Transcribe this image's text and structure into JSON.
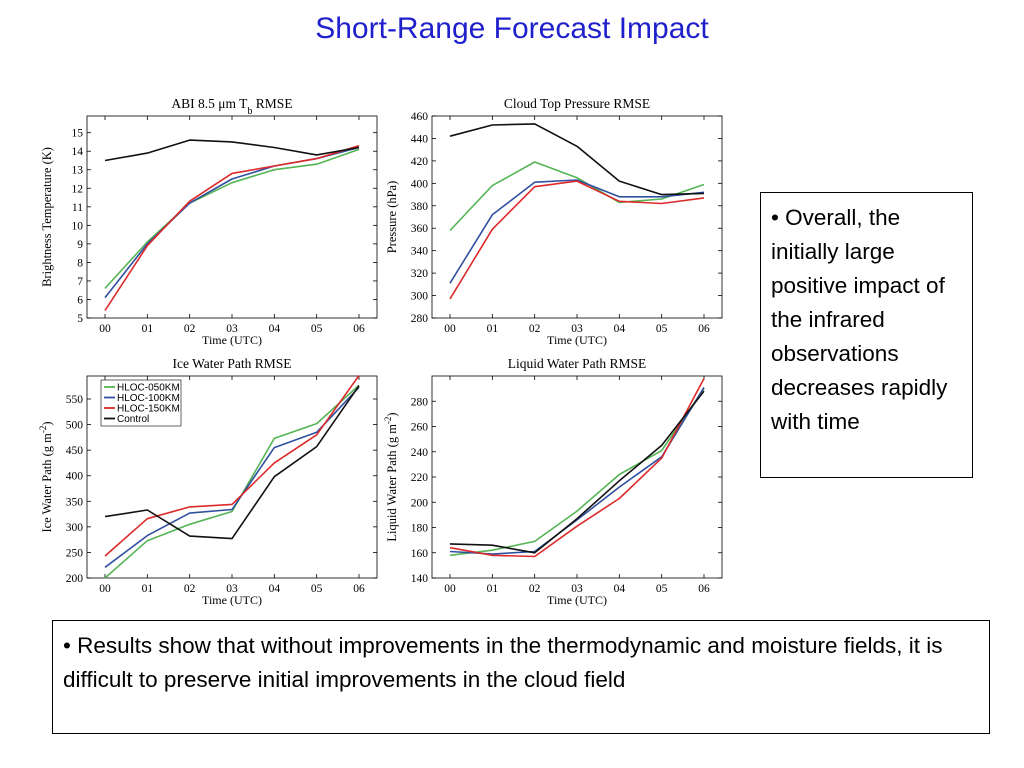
{
  "slide": {
    "title": "Short-Range Forecast Impact",
    "note_right": "• Overall, the initially large positive impact of the infrared observations decreases rapidly with time",
    "note_bottom": "• Results show that without improvements in the thermodynamic and moisture fields, it is difficult to preserve initial improvements in the cloud field"
  },
  "colors": {
    "title": "#1f1fcc",
    "HLOC-050KM": "#55b555",
    "HLOC-100KM": "#3050a0",
    "HLOC-150KM": "#dd2a2a",
    "Control": "#111111"
  },
  "chart_data": [
    {
      "type": "line",
      "title_parts": [
        "ABI 8.5 μm T",
        "b",
        " RMSE"
      ],
      "xlabel": "Time (UTC)",
      "ylabel": "Brightness Temperature (K)",
      "categories": [
        "00",
        "01",
        "02",
        "03",
        "04",
        "05",
        "06"
      ],
      "ylim": [
        5,
        15.9
      ],
      "yticks": [
        5,
        6,
        7,
        8,
        9,
        10,
        11,
        12,
        13,
        14,
        15
      ],
      "legend": null,
      "series": [
        {
          "name": "HLOC-050KM",
          "values": [
            6.6,
            9.1,
            11.2,
            12.3,
            13.0,
            13.3,
            14.1
          ]
        },
        {
          "name": "HLOC-100KM",
          "values": [
            6.1,
            9.0,
            11.2,
            12.5,
            13.2,
            13.6,
            14.2
          ]
        },
        {
          "name": "HLOC-150KM",
          "values": [
            5.4,
            8.9,
            11.3,
            12.8,
            13.2,
            13.6,
            14.3
          ]
        },
        {
          "name": "Control",
          "values": [
            13.5,
            13.9,
            14.6,
            14.5,
            14.2,
            13.8,
            14.2
          ]
        }
      ]
    },
    {
      "type": "line",
      "title_parts": [
        "Cloud Top Pressure RMSE"
      ],
      "xlabel": "Time (UTC)",
      "ylabel": "Pressure (hPa)",
      "categories": [
        "00",
        "01",
        "02",
        "03",
        "04",
        "05",
        "06"
      ],
      "ylim": [
        280,
        460
      ],
      "yticks": [
        280,
        300,
        320,
        340,
        360,
        380,
        400,
        420,
        440,
        460
      ],
      "legend": null,
      "series": [
        {
          "name": "HLOC-050KM",
          "values": [
            358,
            398,
            419,
            405,
            383,
            386,
            399
          ]
        },
        {
          "name": "HLOC-100KM",
          "values": [
            311,
            372,
            401,
            403,
            388,
            388,
            392
          ]
        },
        {
          "name": "HLOC-150KM",
          "values": [
            297,
            359,
            397,
            402,
            384,
            382,
            387
          ]
        },
        {
          "name": "Control",
          "values": [
            442,
            452,
            453,
            433,
            402,
            390,
            391
          ]
        }
      ]
    },
    {
      "type": "line",
      "title_parts": [
        "Ice Water Path RMSE"
      ],
      "xlabel": "Time (UTC)",
      "ylabel_parts": [
        "Ice Water Path (g m",
        "-2",
        ")"
      ],
      "categories": [
        "00",
        "01",
        "02",
        "03",
        "04",
        "05",
        "06"
      ],
      "ylim": [
        200,
        595
      ],
      "yticks": [
        200,
        250,
        300,
        350,
        400,
        450,
        500,
        550
      ],
      "legend": "top-left",
      "series": [
        {
          "name": "HLOC-050KM",
          "values": [
            200,
            273,
            305,
            330,
            473,
            502,
            577
          ]
        },
        {
          "name": "HLOC-100KM",
          "values": [
            221,
            283,
            327,
            334,
            455,
            485,
            573
          ]
        },
        {
          "name": "HLOC-150KM",
          "values": [
            243,
            316,
            339,
            344,
            425,
            480,
            596
          ]
        },
        {
          "name": "Control",
          "values": [
            320,
            333,
            282,
            277,
            398,
            457,
            576
          ]
        }
      ]
    },
    {
      "type": "line",
      "title_parts": [
        "Liquid Water Path RMSE"
      ],
      "xlabel": "Time (UTC)",
      "ylabel_parts": [
        "Liquid Water Path (g m",
        "-2",
        ")"
      ],
      "categories": [
        "00",
        "01",
        "02",
        "03",
        "04",
        "05",
        "06"
      ],
      "ylim": [
        140,
        300
      ],
      "yticks": [
        140,
        160,
        180,
        200,
        220,
        240,
        260,
        280
      ],
      "legend": null,
      "series": [
        {
          "name": "HLOC-050KM",
          "values": [
            158,
            162,
            169,
            193,
            222,
            241,
            290
          ]
        },
        {
          "name": "HLOC-100KM",
          "values": [
            161,
            159,
            161,
            186,
            212,
            236,
            291
          ]
        },
        {
          "name": "HLOC-150KM",
          "values": [
            164,
            158,
            157,
            181,
            203,
            235,
            298
          ]
        },
        {
          "name": "Control",
          "values": [
            167,
            166,
            160,
            187,
            217,
            245,
            288
          ]
        }
      ]
    }
  ]
}
